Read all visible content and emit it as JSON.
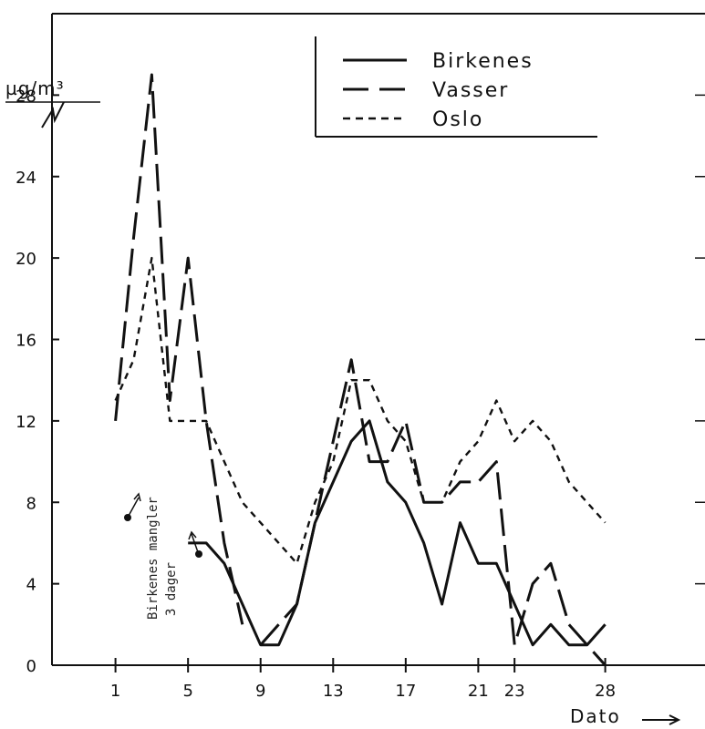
{
  "chart_data": {
    "type": "line",
    "ylabel": "µg/m³",
    "xlabel": "Dato",
    "xlim": [
      -2.5,
      33.5
    ],
    "ylim": [
      0,
      32
    ],
    "x_ticks": [
      1,
      5,
      9,
      13,
      17,
      21,
      23,
      28
    ],
    "y_ticks": [
      0,
      4,
      8,
      12,
      16,
      20,
      24,
      28
    ],
    "legend_position": "top-right",
    "series": [
      {
        "name": "Birkenes",
        "style": "solid",
        "segments": [
          {
            "x": [
              5,
              6,
              7,
              8,
              9,
              10,
              11,
              12,
              13,
              14,
              15,
              16,
              17,
              18,
              19,
              20,
              21,
              22,
              23,
              24,
              25,
              26,
              27,
              28
            ],
            "y": [
              6,
              6,
              5,
              3,
              1,
              1,
              3,
              7,
              9,
              11,
              12,
              9,
              8,
              6,
              3,
              7,
              5,
              5,
              3,
              1,
              2,
              1,
              1,
              2
            ]
          }
        ]
      },
      {
        "name": "Vasser",
        "style": "long-dash",
        "segments": [
          {
            "x": [
              1,
              2,
              3,
              4,
              5,
              6,
              7,
              8
            ],
            "y": [
              12,
              21,
              29,
              13,
              20,
              12,
              6,
              2
            ]
          },
          {
            "x": [
              9,
              10,
              11,
              12,
              13,
              14,
              15,
              16,
              17,
              18,
              19,
              20,
              21,
              22,
              23,
              24,
              25,
              26,
              27,
              28
            ],
            "y": [
              1,
              2,
              3,
              7,
              11,
              15,
              10,
              10,
              12,
              8,
              8,
              9,
              9,
              10,
              1,
              4,
              5,
              2,
              1,
              0
            ]
          }
        ]
      },
      {
        "name": "Oslo",
        "style": "short-dash",
        "segments": [
          {
            "x": [
              1,
              2,
              3,
              4,
              5,
              6,
              7,
              8,
              9,
              10,
              11,
              12,
              13,
              14,
              15,
              16,
              17,
              18,
              19,
              20,
              21,
              22,
              23,
              24,
              25,
              26,
              27,
              28
            ],
            "y": [
              13,
              15,
              20,
              12,
              12,
              12,
              10,
              8,
              7,
              6,
              5,
              8,
              10,
              14,
              14,
              12,
              11,
              8,
              8,
              10,
              11,
              13,
              11,
              12,
              11,
              9,
              8,
              7
            ]
          }
        ]
      }
    ],
    "annotations": [
      {
        "text": "Birkenes mangler",
        "x": 3.2,
        "y": 7.9
      },
      {
        "text": "3 dager",
        "x": 4.0,
        "y": 7.9
      }
    ]
  }
}
